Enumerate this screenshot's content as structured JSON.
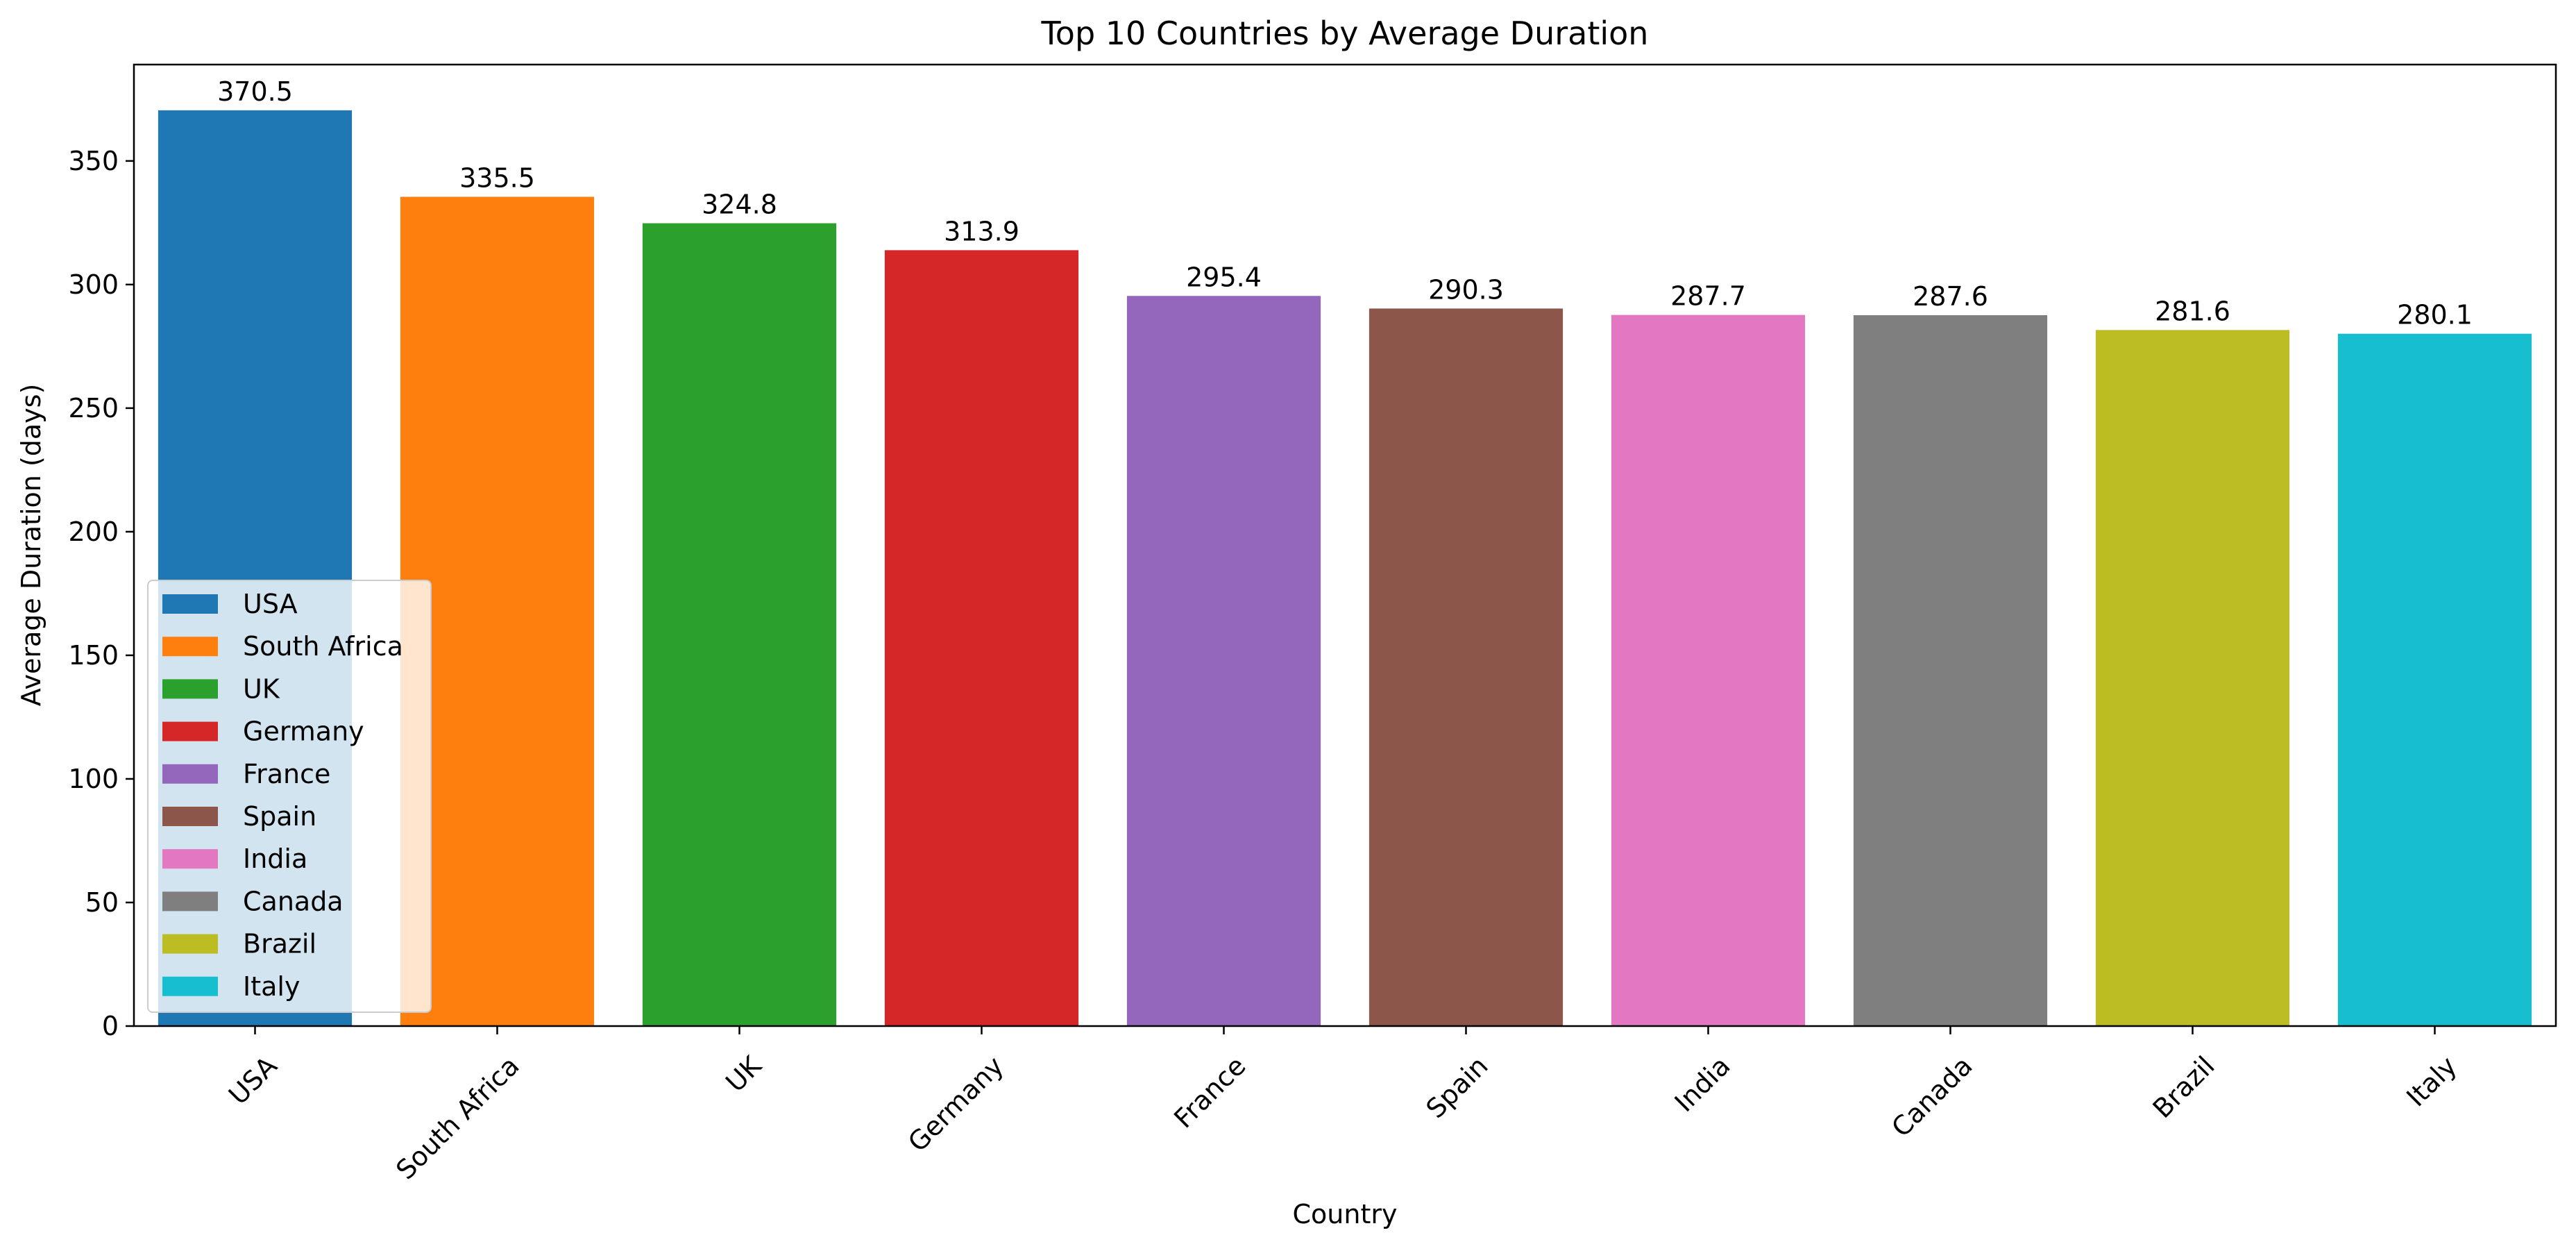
{
  "chart_data": {
    "type": "bar",
    "title": "Top 10 Countries by Average Duration",
    "xlabel": "Country",
    "ylabel": "Average Duration (days)",
    "categories": [
      "USA",
      "South Africa",
      "UK",
      "Germany",
      "France",
      "Spain",
      "India",
      "Canada",
      "Brazil",
      "Italy"
    ],
    "values": [
      370.5,
      335.5,
      324.8,
      313.9,
      295.4,
      290.3,
      287.7,
      287.6,
      281.6,
      280.1
    ],
    "data_labels": [
      "370.5",
      "335.5",
      "324.8",
      "313.9",
      "295.4",
      "290.3",
      "287.7",
      "287.6",
      "281.6",
      "280.1"
    ],
    "colors": [
      "#1f77b4",
      "#ff7f0e",
      "#2ca02c",
      "#d62728",
      "#9467bd",
      "#8c564b",
      "#e377c2",
      "#7f7f7f",
      "#bcbd22",
      "#17becf"
    ],
    "ylim": [
      0,
      389
    ],
    "yticks": [
      0,
      50,
      100,
      150,
      200,
      250,
      300,
      350
    ],
    "ytick_labels": [
      "0",
      "50",
      "100",
      "150",
      "200",
      "250",
      "300",
      "350"
    ],
    "grid": false,
    "legend": {
      "position": "lower-left",
      "entries": [
        "USA",
        "South Africa",
        "UK",
        "Germany",
        "France",
        "Spain",
        "India",
        "Canada",
        "Brazil",
        "Italy"
      ]
    }
  }
}
